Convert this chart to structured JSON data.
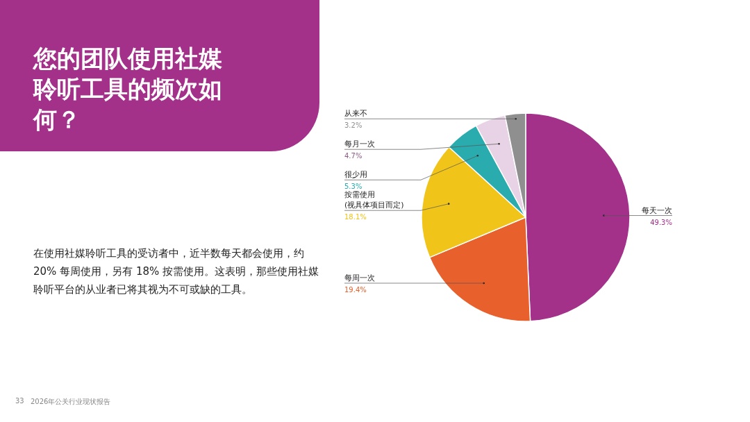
{
  "chart_data": {
    "type": "pie",
    "title": "您的团队使用社媒聆听工具的频次如何？",
    "categories": [
      "每天一次",
      "每周一次",
      "按需使用\n(视具体项目而定)",
      "很少用",
      "每月一次",
      "从来不"
    ],
    "values": [
      49.3,
      19.4,
      18.1,
      5.3,
      4.7,
      3.2
    ],
    "colors": [
      "#a3318a",
      "#e8602c",
      "#f0c419",
      "#2aacae",
      "#e8d3e6",
      "#8f8f8f"
    ],
    "value_labels": [
      "49.3%",
      "19.4%",
      "18.1%",
      "5.3%",
      "4.7%",
      "3.2%"
    ],
    "annotations": [
      "在使用社媒聆听工具的受访者中，近半数每天都会使用，约 20% 每周使用，另有 18% 按需使用。这表明，那些使用社媒聆听平台的从业者已将其视为不可或缺的工具。",
      "33",
      "2026年公关行业现状报告"
    ]
  }
}
